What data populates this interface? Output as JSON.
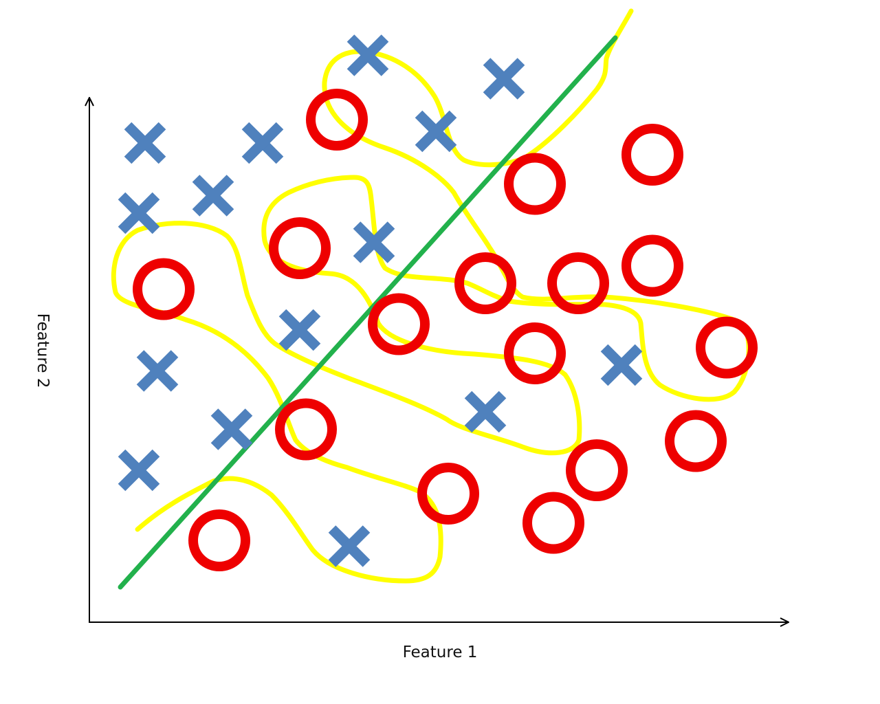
{
  "chart_data": {
    "type": "scatter",
    "title": "",
    "xlabel": "Feature 1",
    "ylabel": "Feature 2",
    "xlim": [
      0,
      10
    ],
    "ylim": [
      0,
      10
    ],
    "grid": false,
    "series": [
      {
        "marker": "x",
        "color": "#4F81BD",
        "points": [
          [
            0.9,
            8.2
          ],
          [
            0.8,
            7.0
          ],
          [
            2.0,
            7.3
          ],
          [
            2.8,
            8.2
          ],
          [
            4.5,
            9.7
          ],
          [
            5.6,
            8.4
          ],
          [
            6.7,
            9.3
          ],
          [
            4.6,
            6.5
          ],
          [
            3.4,
            5.0
          ],
          [
            1.1,
            4.3
          ],
          [
            2.3,
            3.3
          ],
          [
            0.8,
            2.6
          ],
          [
            6.4,
            3.6
          ],
          [
            4.2,
            1.3
          ],
          [
            8.6,
            4.4
          ]
        ]
      },
      {
        "marker": "o",
        "color": "#EE0000",
        "points": [
          [
            4.0,
            8.6
          ],
          [
            3.4,
            6.4
          ],
          [
            1.2,
            5.7
          ],
          [
            5.0,
            5.1
          ],
          [
            3.5,
            3.3
          ],
          [
            2.1,
            1.4
          ],
          [
            5.8,
            2.2
          ],
          [
            7.2,
            7.5
          ],
          [
            9.1,
            8.0
          ],
          [
            6.4,
            5.8
          ],
          [
            7.9,
            5.8
          ],
          [
            9.1,
            6.1
          ],
          [
            7.2,
            4.6
          ],
          [
            10.3,
            4.7
          ],
          [
            9.8,
            3.1
          ],
          [
            8.2,
            2.6
          ],
          [
            7.5,
            1.7
          ]
        ]
      }
    ],
    "boundaries": [
      {
        "kind": "linear",
        "color": "#22B14C",
        "points": [
          [
            0.5,
            0.6
          ],
          [
            8.5,
            10.0
          ]
        ]
      },
      {
        "kind": "overfit",
        "color": "#FFFF00"
      }
    ]
  },
  "diagram": {
    "x_axis_title": "Feature 1",
    "y_axis_title": "Feature 2",
    "axis_color": "#000000"
  }
}
